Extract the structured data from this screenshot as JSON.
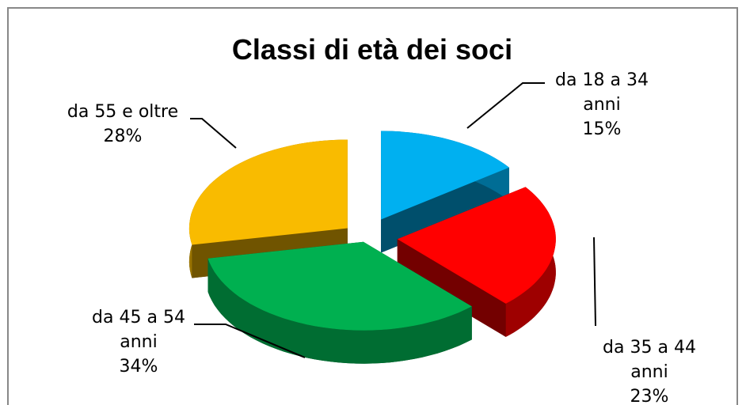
{
  "chart_data": {
    "type": "pie3d",
    "title": "Classi di età dei soci",
    "categories": [
      "da 18 a 34 anni",
      "da 35 a 44 anni",
      "da 45 a 54 anni",
      "da 55 e oltre"
    ],
    "values": [
      15,
      23,
      34,
      28
    ],
    "value_labels": [
      "15%",
      "23%",
      "34%",
      "28%"
    ],
    "colors": [
      "#00b0f0",
      "#ff0000",
      "#00b050",
      "#f9bb00"
    ]
  }
}
